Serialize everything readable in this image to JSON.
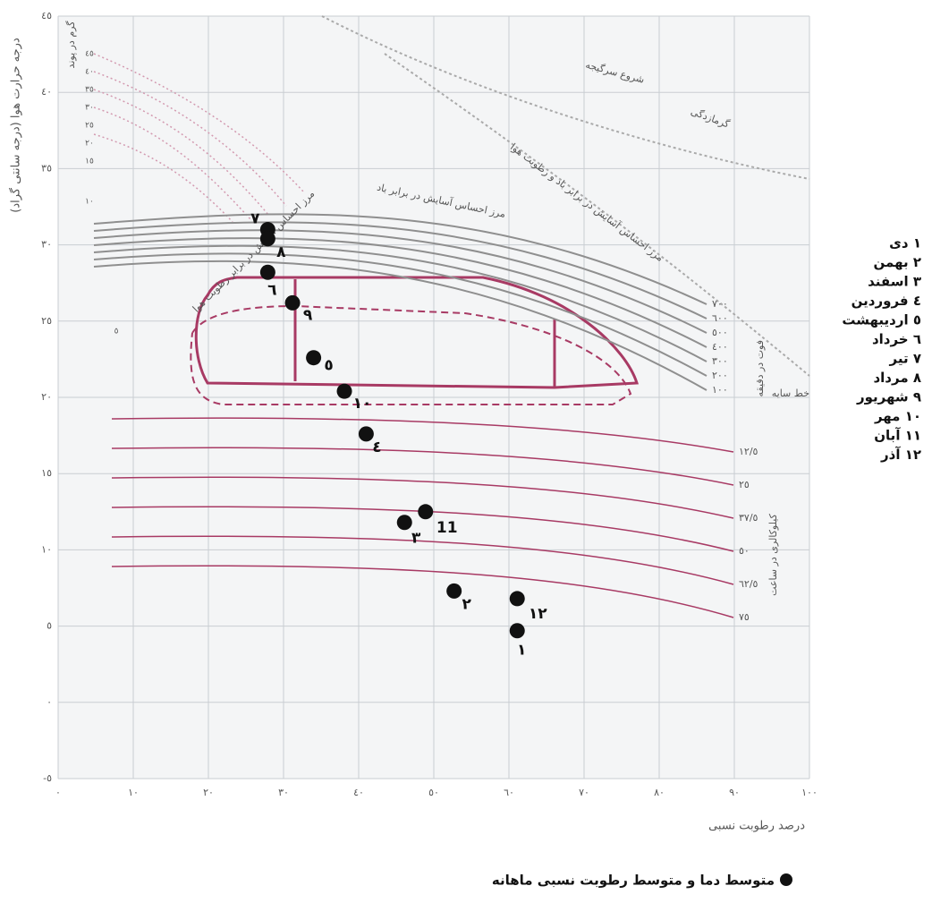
{
  "chart_data": {
    "type": "scatter",
    "y_label": "درجه حرارت هوا (درجه سانتی گراد)",
    "x_label": "درصد رطوبت نسبی",
    "legend_title": "متوسط دما و متوسط رطوبت نسبی ماهانه",
    "xlim": [
      0,
      100
    ],
    "ylim": [
      -5,
      45
    ],
    "xticks": [
      {
        "value": 0,
        "label": "٠"
      },
      {
        "value": 10,
        "label": "١٠"
      },
      {
        "value": 20,
        "label": "٢٠"
      },
      {
        "value": 30,
        "label": "٣٠"
      },
      {
        "value": 40,
        "label": "٤٠"
      },
      {
        "value": 50,
        "label": "٥٠"
      },
      {
        "value": 60,
        "label": "٦٠"
      },
      {
        "value": 70,
        "label": "٧٠"
      },
      {
        "value": 80,
        "label": "٨٠"
      },
      {
        "value": 90,
        "label": "٩٠"
      },
      {
        "value": 100,
        "label": "١٠٠"
      }
    ],
    "yticks": [
      {
        "value": -5,
        "label": "-٥"
      },
      {
        "value": 0,
        "label": "٠"
      },
      {
        "value": 5,
        "label": "٥"
      },
      {
        "value": 10,
        "label": "١٠"
      },
      {
        "value": 15,
        "label": "١٥"
      },
      {
        "value": 20,
        "label": "٢٠"
      },
      {
        "value": 25,
        "label": "٢٥"
      },
      {
        "value": 30,
        "label": "٣٠"
      },
      {
        "value": 35,
        "label": "٣٥"
      },
      {
        "value": 40,
        "label": "٤٠"
      },
      {
        "value": 45,
        "label": "٤٥"
      }
    ],
    "grid": true,
    "series": [
      {
        "color": "#111111",
        "x": [
          61.1,
          52.7,
          46.1,
          41,
          34,
          27.9,
          27.9,
          27.9,
          31.2,
          38.1,
          48.9,
          61.1
        ],
        "values": [
          4.7,
          7.3,
          11.8,
          17.6,
          22.6,
          28.2,
          31,
          30.4,
          26.2,
          20.4,
          12.5,
          6.8
        ],
        "point_labels": [
          "١",
          "٢",
          "٣",
          "٤",
          "٥",
          "٦",
          "٧",
          "٨",
          "٩",
          "١٠",
          "11",
          "١٢"
        ]
      }
    ],
    "months": [
      "١ دی",
      "٢ بهمن",
      "٣ اسفند",
      "٤ فروردین",
      "٥ اردیبهشت",
      "٦ خرداد",
      "٧ تیر",
      "٨ مرداد",
      "٩ شهریور",
      "١٠ مهر",
      "١١ آبان",
      "١٢ آذر"
    ],
    "annotations": [
      "شروع سرگیجه",
      "گرمازدگی",
      "مرز احساس آسایش در برابر باد و رطوبت هوا",
      "مرز احساس آسایش در برابر باد",
      "مرز احساس آسایش در برابر رطوبت هوا",
      "خط سایه",
      "فوت در دقیقه",
      "کیلوکالری در ساعت",
      "گرم در پوند"
    ],
    "wind_labels": [
      "٧٠٠",
      "٦٠٠",
      "٥٠٠",
      "٤٠٠",
      "٣٠٠",
      "٢٠٠",
      "١٠٠"
    ],
    "radiation_labels": [
      "١٢/٥",
      "٢٥",
      "٣٧/٥",
      "٥٠",
      "٦٢/٥",
      "٧٥"
    ],
    "moisture_labels": [
      "٤٥",
      "٤٠",
      "٣٥",
      "٣٠",
      "٢٥",
      "٢٠",
      "١٥",
      "١٠",
      "٥"
    ]
  }
}
